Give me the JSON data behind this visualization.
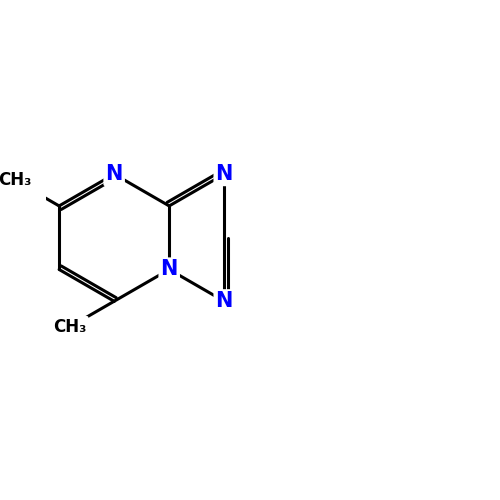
{
  "background_color": "#ffffff",
  "bond_color": "#000000",
  "bond_width": 2.2,
  "atom_colors": {
    "N": "#0000ff",
    "S": "#cccc00",
    "O": "#ff0000",
    "Cl": "#00cc00",
    "C": "#000000"
  },
  "font_size_atoms": 15,
  "xlim": [
    -1.5,
    9.5
  ],
  "ylim": [
    -4.5,
    4.5
  ]
}
